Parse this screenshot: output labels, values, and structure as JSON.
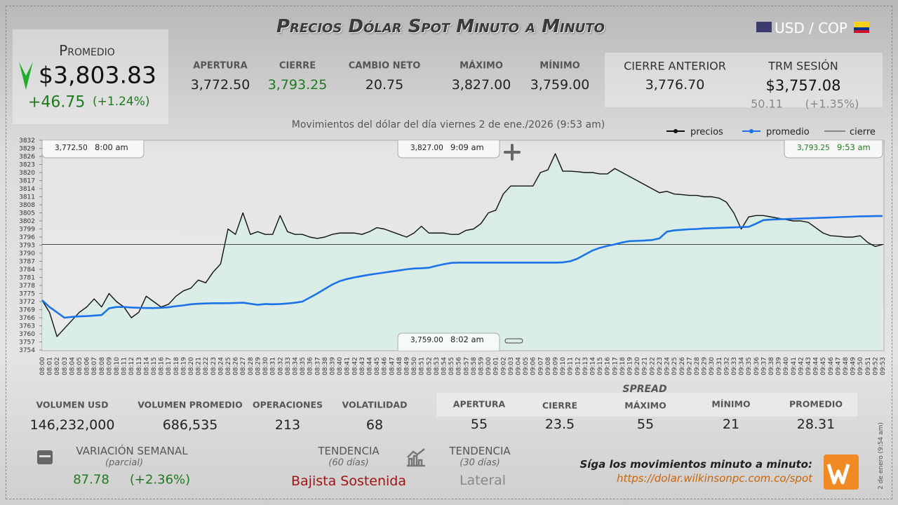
{
  "header": {
    "title": "Precios Dólar Spot Minuto a Minuto",
    "pair": "USD / COP"
  },
  "summary": {
    "label": "Promedio",
    "value": "$3,803.83",
    "change": "+46.75",
    "change_pct": "(+1.24%)"
  },
  "stats": [
    {
      "label": "APERTURA",
      "value": "3,772.50"
    },
    {
      "label": "CIERRE",
      "value": "3,793.25"
    },
    {
      "label": "CAMBIO NETO",
      "value": "20.75"
    },
    {
      "label": "MÁXIMO",
      "value": "3,827.00"
    },
    {
      "label": "MÍNIMO",
      "value": "3,759.00"
    }
  ],
  "previous_close": {
    "label": "CIERRE ANTERIOR",
    "value": "3,776.70"
  },
  "trm": {
    "label": "TRM SESIÓN",
    "value": "$3,757.08",
    "change": "50.11",
    "change_pct": "(+1.35%)"
  },
  "chart_data": {
    "type": "line",
    "subtitle": "Movimientos del dólar del día viernes 2 de ene./2026 (9:53 am)",
    "categories": [
      "08:00",
      "08:01",
      "08:02",
      "08:03",
      "08:04",
      "08:05",
      "08:06",
      "08:07",
      "08:08",
      "08:09",
      "08:10",
      "08:11",
      "08:12",
      "08:13",
      "08:14",
      "08:15",
      "08:16",
      "08:17",
      "08:18",
      "08:19",
      "08:20",
      "08:21",
      "08:22",
      "08:23",
      "08:24",
      "08:25",
      "08:26",
      "08:27",
      "08:28",
      "08:29",
      "08:30",
      "08:31",
      "08:32",
      "08:33",
      "08:34",
      "08:35",
      "08:36",
      "08:37",
      "08:38",
      "08:39",
      "08:40",
      "08:41",
      "08:42",
      "08:43",
      "08:44",
      "08:45",
      "08:46",
      "08:47",
      "08:48",
      "08:49",
      "08:50",
      "08:51",
      "08:52",
      "08:53",
      "08:54",
      "08:55",
      "08:56",
      "08:57",
      "08:58",
      "08:59",
      "09:00",
      "09:01",
      "09:02",
      "09:03",
      "09:04",
      "09:05",
      "09:06",
      "09:07",
      "09:08",
      "09:09",
      "09:10",
      "09:11",
      "09:12",
      "09:13",
      "09:14",
      "09:15",
      "09:16",
      "09:17",
      "09:18",
      "09:19",
      "09:20",
      "09:21",
      "09:22",
      "09:23",
      "09:24",
      "09:25",
      "09:26",
      "09:27",
      "09:28",
      "09:29",
      "09:30",
      "09:31",
      "09:32",
      "09:33",
      "09:34",
      "09:35",
      "09:36",
      "09:37",
      "09:38",
      "09:39",
      "09:40",
      "09:41",
      "09:42",
      "09:43",
      "09:44",
      "09:45",
      "09:46",
      "09:47",
      "09:48",
      "09:49",
      "09:50",
      "09:51",
      "09:52",
      "09:53"
    ],
    "series": [
      {
        "name": "precios",
        "color": "#111111",
        "values": [
          3772.5,
          3768,
          3759,
          3762,
          3765,
          3768,
          3770,
          3773,
          3770,
          3775,
          3772,
          3770,
          3766,
          3768,
          3774,
          3772,
          3770,
          3771,
          3774,
          3776,
          3777,
          3780,
          3779,
          3783,
          3786,
          3799,
          3797,
          3805,
          3797,
          3798,
          3797,
          3797,
          3804,
          3798,
          3797,
          3797,
          3796,
          3795.5,
          3796,
          3797,
          3797.5,
          3797.5,
          3797.5,
          3797,
          3798,
          3799.5,
          3799,
          3798,
          3797,
          3796,
          3797.5,
          3800,
          3797.5,
          3797.5,
          3797.5,
          3797,
          3797,
          3798.5,
          3799,
          3801,
          3805,
          3806,
          3812,
          3815,
          3815,
          3815,
          3815,
          3820,
          3821,
          3827,
          3820.5,
          3820.5,
          3820.3,
          3820,
          3820,
          3819.5,
          3819.5,
          3821.5,
          3820,
          3818.5,
          3817,
          3815.5,
          3814,
          3812.5,
          3813,
          3812,
          3811.8,
          3811.5,
          3811.5,
          3811,
          3811,
          3810.5,
          3809,
          3805,
          3799,
          3803.5,
          3804,
          3804,
          3803.5,
          3803,
          3802.5,
          3802,
          3802,
          3801.5,
          3799.5,
          3797.5,
          3796.5,
          3796.3,
          3796,
          3796,
          3796.5,
          3794,
          3792.5,
          3793.25
        ]
      },
      {
        "name": "promedio",
        "color": "#1a73e8",
        "values": [
          3772.5,
          3770,
          3768,
          3766,
          3766.3,
          3766.5,
          3766.6,
          3766.8,
          3767,
          3769.5,
          3770,
          3770,
          3769.8,
          3769.7,
          3769.6,
          3769.6,
          3769.7,
          3769.9,
          3770.3,
          3770.6,
          3771,
          3771.2,
          3771.3,
          3771.4,
          3771.4,
          3771.4,
          3771.5,
          3771.6,
          3771.2,
          3770.8,
          3771.1,
          3771,
          3771.1,
          3771.3,
          3771.6,
          3772,
          3773.5,
          3775,
          3776.7,
          3778.3,
          3779.6,
          3780.4,
          3781,
          3781.5,
          3782,
          3782.4,
          3782.8,
          3783.2,
          3783.6,
          3784,
          3784.3,
          3784.4,
          3784.6,
          3785.3,
          3785.9,
          3786.4,
          3786.5,
          3786.5,
          3786.5,
          3786.5,
          3786.5,
          3786.5,
          3786.5,
          3786.5,
          3786.5,
          3786.5,
          3786.5,
          3786.5,
          3786.5,
          3786.5,
          3786.6,
          3787,
          3788,
          3789.5,
          3791,
          3792,
          3792.7,
          3793.3,
          3794,
          3794.5,
          3794.6,
          3794.7,
          3794.9,
          3795.5,
          3798,
          3798.5,
          3798.7,
          3798.9,
          3799,
          3799.2,
          3799.3,
          3799.4,
          3799.5,
          3799.6,
          3799.7,
          3799.8,
          3801,
          3802.3,
          3802.5,
          3802.6,
          3802.7,
          3802.8,
          3802.9,
          3803,
          3803.1,
          3803.2,
          3803.3,
          3803.4,
          3803.5,
          3803.6,
          3803.7,
          3803.75,
          3803.8,
          3803.83
        ]
      }
    ],
    "reference_lines": [
      {
        "name": "cierre",
        "value": 3793.25,
        "color": "#333333"
      }
    ],
    "ylim": [
      3754,
      3832
    ],
    "yticks": [
      3754,
      3757,
      3760,
      3763,
      3766,
      3769,
      3772,
      3775,
      3778,
      3781,
      3784,
      3787,
      3790,
      3793,
      3796,
      3799,
      3802,
      3805,
      3808,
      3811,
      3814,
      3817,
      3820,
      3823,
      3826,
      3829,
      3832
    ],
    "annotations": [
      {
        "value": "3,772.50",
        "time": "8:00 am"
      },
      {
        "value": "3,827.00",
        "time": "9:09 am"
      },
      {
        "value": "3,793.25",
        "time": "9:53 am"
      },
      {
        "value": "3,759.00",
        "time": "8:02 am"
      }
    ],
    "fill_color": "#d4eee4"
  },
  "volume": [
    {
      "label": "VOLUMEN USD",
      "value": "146,232,000"
    },
    {
      "label": "VOLUMEN PROMEDIO",
      "value": "686,535"
    },
    {
      "label": "OPERACIONES",
      "value": "213"
    },
    {
      "label": "VOLATILIDAD",
      "value": "68"
    }
  ],
  "spread": {
    "title": "SPREAD",
    "items": [
      {
        "label": "APERTURA",
        "value": "55"
      },
      {
        "label": "CIERRE",
        "value": "23.5"
      },
      {
        "label": "MÁXIMO",
        "value": "55"
      },
      {
        "label": "MÍNIMO",
        "value": "21"
      },
      {
        "label": "PROMEDIO",
        "value": "28.31"
      }
    ]
  },
  "weekly": {
    "label": "VARIACIÓN SEMANAL",
    "sub": "(parcial)",
    "value": "87.78",
    "pct": "(+2.36%)"
  },
  "trend60": {
    "label": "TENDENCIA",
    "sub": "(60 días)",
    "value": "Bajista Sostenida"
  },
  "trend30": {
    "label": "TENDENCIA",
    "sub": "(30 días)",
    "value": "Lateral"
  },
  "footer": {
    "cta": "Síga los movimientos minuto a minuto:",
    "url": "https://dolar.wilkinsonpc.com.co/spot",
    "timestamp": "2 de enero (9:54 am)"
  }
}
